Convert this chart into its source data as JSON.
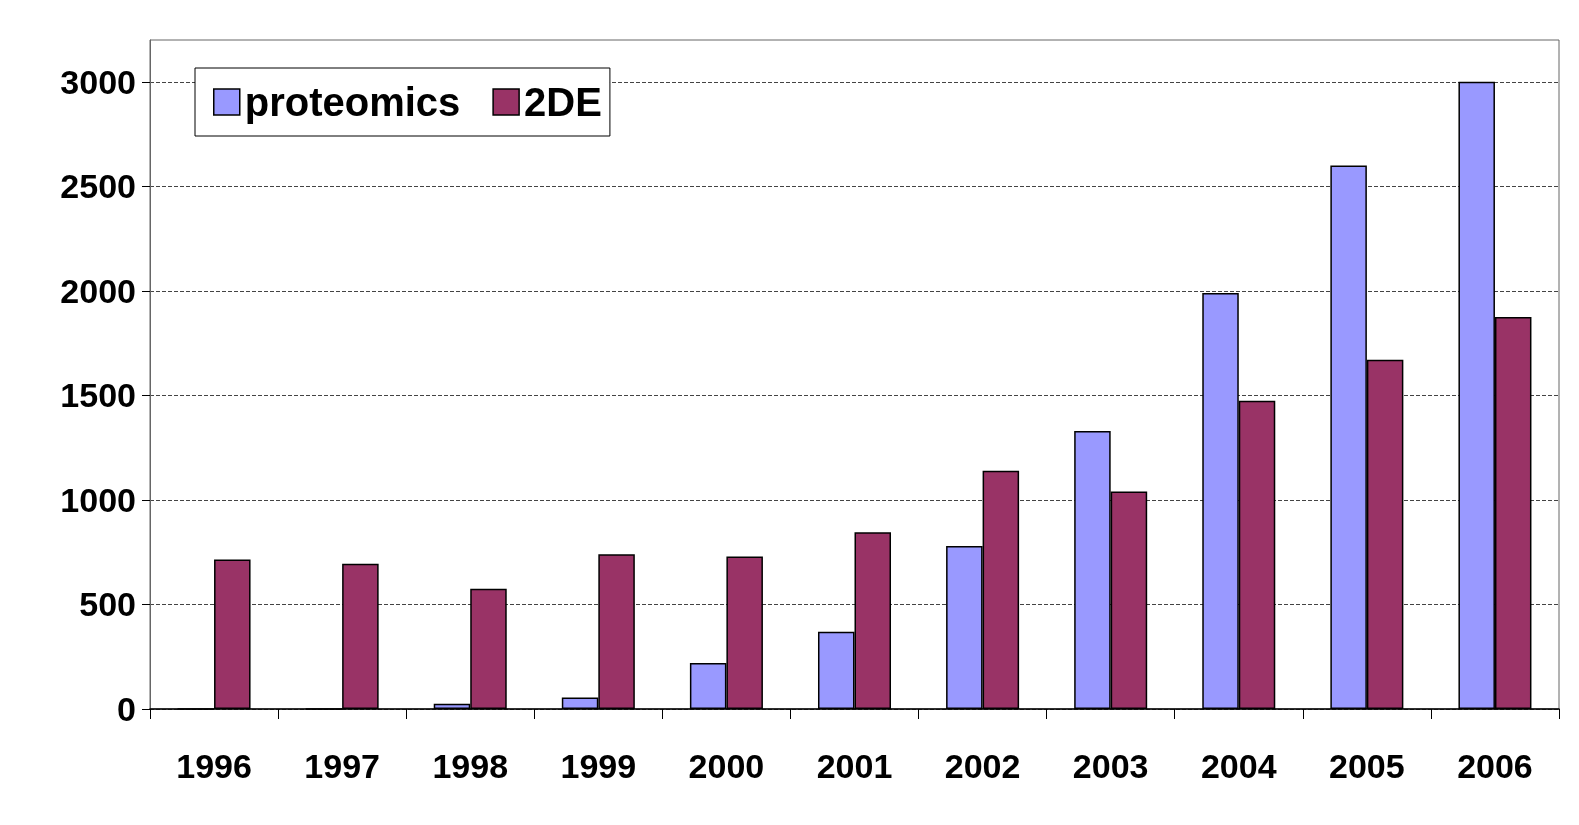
{
  "chart_data": {
    "type": "bar",
    "categories": [
      "1996",
      "1997",
      "1998",
      "1999",
      "2000",
      "2001",
      "2002",
      "2003",
      "2004",
      "2005",
      "2006"
    ],
    "series": [
      {
        "name": "proteomics",
        "color": "#9999ff",
        "values": [
          0,
          0,
          25,
          55,
          220,
          370,
          780,
          1330,
          1990,
          2600,
          3000
        ]
      },
      {
        "name": "2DE",
        "color": "#993366",
        "values": [
          715,
          695,
          575,
          740,
          730,
          845,
          1140,
          1040,
          1475,
          1670,
          1875
        ]
      }
    ],
    "ylim": [
      0,
      3200
    ],
    "yticks": [
      0,
      500,
      1000,
      1500,
      2000,
      2500,
      3000
    ],
    "grid": "y",
    "legend": "top left"
  }
}
